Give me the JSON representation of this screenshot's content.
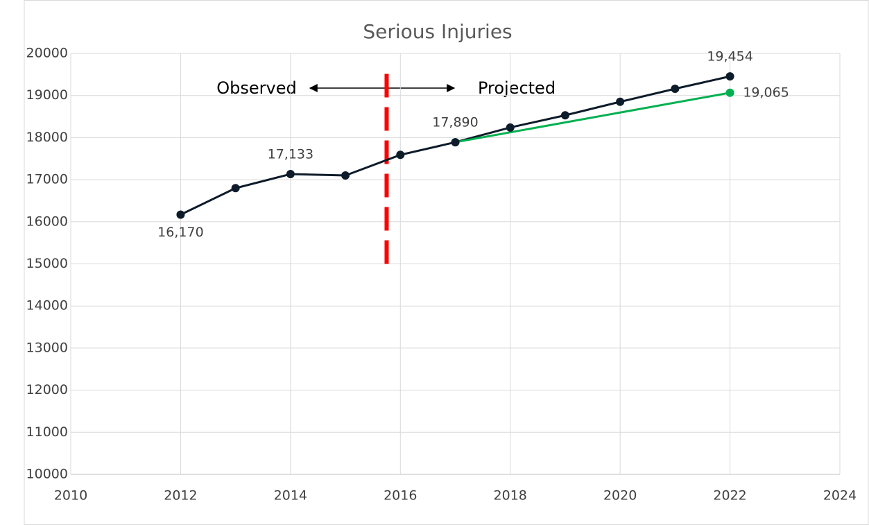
{
  "chart_data": {
    "type": "line",
    "title": "Serious Injuries",
    "xlim": [
      2010,
      2024
    ],
    "xticks": [
      2010,
      2012,
      2014,
      2016,
      2018,
      2020,
      2022,
      2024
    ],
    "ylim": [
      10000,
      20000
    ],
    "yticks": [
      10000,
      11000,
      12000,
      13000,
      14000,
      15000,
      16000,
      17000,
      18000,
      19000,
      20000
    ],
    "grid": true,
    "series": [
      {
        "color": "#0d1b2a",
        "x": [
          2012,
          2013,
          2014,
          2015,
          2016,
          2017,
          2018,
          2019,
          2020,
          2021,
          2022
        ],
        "values": [
          16170,
          16800,
          17133,
          17100,
          17590,
          17890,
          18240,
          18530,
          18850,
          19160,
          19454
        ],
        "value_labels": [
          "16,170",
          null,
          "17,133",
          null,
          null,
          "17,890",
          null,
          null,
          null,
          null,
          "19,454"
        ]
      },
      {
        "color": "#00b050",
        "x": [
          2017,
          2022
        ],
        "values": [
          17890,
          19065
        ],
        "value_labels": [
          null,
          "19,065"
        ]
      }
    ],
    "annotations": [
      {
        "text": "Observed"
      },
      {
        "text": "Projected"
      }
    ],
    "divider": {
      "x": 2015.75,
      "y": [
        15000,
        19700
      ],
      "color": "#ff0000"
    }
  }
}
